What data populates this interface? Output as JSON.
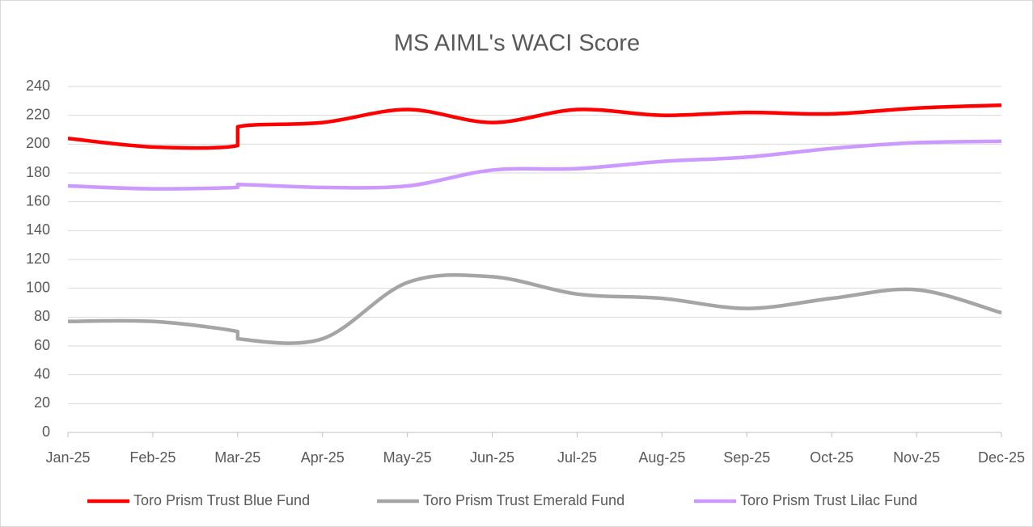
{
  "chart_data": {
    "type": "line",
    "title": "MS AIML's WACI Score",
    "x": [
      "Jan-25",
      "Feb-25",
      "Mar-25",
      "Mar-25",
      "Apr-25",
      "May-25",
      "Jun-25",
      "Jul-25",
      "Aug-25",
      "Sep-25",
      "Oct-25",
      "Nov-25",
      "Dec-25"
    ],
    "xticks": [
      "Jan-25",
      "Feb-25",
      "Mar-25",
      "Apr-25",
      "May-25",
      "Jun-25",
      "Jul-25",
      "Aug-25",
      "Sep-25",
      "Oct-25",
      "Nov-25",
      "Dec-25"
    ],
    "ylim": [
      0,
      240
    ],
    "yticks": [
      0,
      20,
      40,
      60,
      80,
      100,
      120,
      140,
      160,
      180,
      200,
      220,
      240
    ],
    "grid": true,
    "smooth": true,
    "legend": "bottom",
    "series": [
      {
        "name": "Toro Prism Trust Blue Fund",
        "color": "#ff0000",
        "values": [
          204,
          198,
          199,
          212,
          215,
          224,
          215,
          224,
          220,
          222,
          221,
          225,
          227
        ]
      },
      {
        "name": "Toro Prism Trust Emerald Fund",
        "color": "#a5a5a5",
        "values": [
          77,
          77,
          70,
          65,
          65,
          104,
          108,
          96,
          93,
          86,
          93,
          99,
          83
        ]
      },
      {
        "name": "Toro Prism Trust Lilac Fund",
        "color": "#cc99ff",
        "values": [
          171,
          169,
          170,
          172,
          170,
          171,
          182,
          183,
          188,
          191,
          197,
          201,
          202
        ]
      }
    ]
  }
}
